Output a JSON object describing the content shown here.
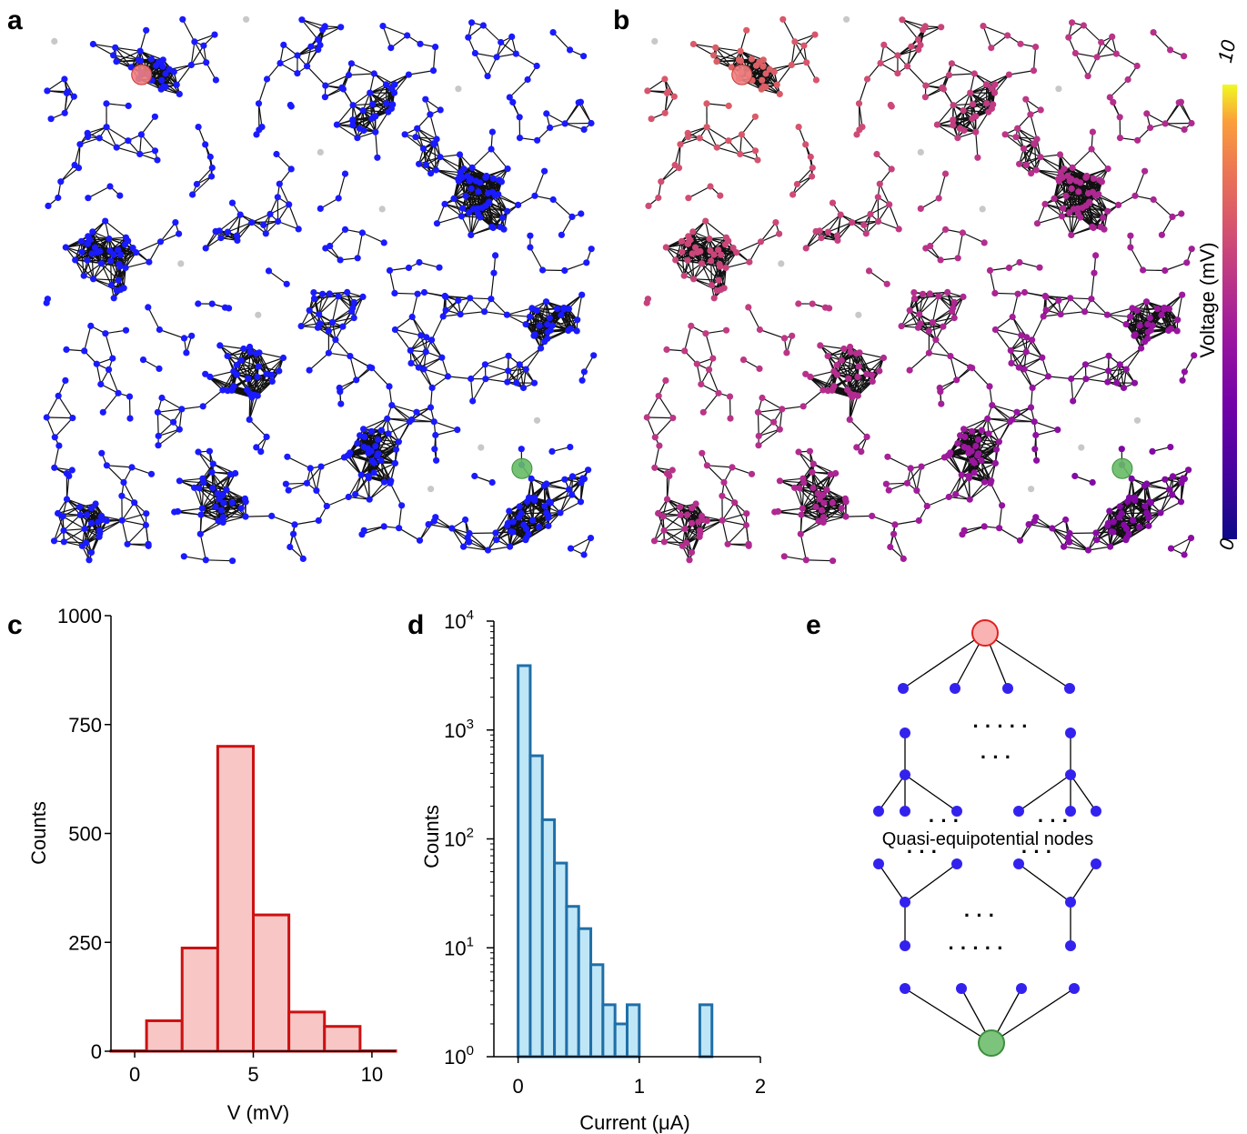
{
  "panels": {
    "a": "a",
    "b": "b",
    "c": "c",
    "d": "d",
    "e": "e"
  },
  "colors": {
    "node_a": "#1a1aff",
    "edge": "#111111",
    "isolated": "#c8c8c8",
    "source": "#f08080",
    "sink": "#66bb66",
    "hist_c_fill": "#f9c6c6",
    "hist_c_edge": "#cc1111",
    "hist_d_fill": "#bfe6f7",
    "hist_d_edge": "#1f6fa8",
    "tree_node": "#3322ee"
  },
  "colorbar": {
    "label": "Voltage (mV)",
    "max_label": "10",
    "min_label": "0",
    "colormap": "plasma"
  },
  "diagram_e": {
    "annotation": "Quasi-equipotential nodes",
    "ellipsis": "· · ·",
    "long_ellipsis": "· · · · ·"
  },
  "chart_data": [
    {
      "panel": "c",
      "type": "bar",
      "xlabel": "V (mV)",
      "ylabel": "Counts",
      "xlim": [
        -1,
        11
      ],
      "ylim": [
        0,
        1000
      ],
      "xticks": [
        "0",
        "5",
        "10"
      ],
      "yticks": [
        "0",
        "250",
        "500",
        "750",
        "1000"
      ],
      "bins": [
        {
          "x0": -1.0,
          "x1": 0.5,
          "value": 1
        },
        {
          "x0": 0.5,
          "x1": 2.0,
          "value": 70
        },
        {
          "x0": 2.0,
          "x1": 3.5,
          "value": 237
        },
        {
          "x0": 3.5,
          "x1": 5.0,
          "value": 700
        },
        {
          "x0": 5.0,
          "x1": 6.5,
          "value": 313
        },
        {
          "x0": 6.5,
          "x1": 8.0,
          "value": 90
        },
        {
          "x0": 8.0,
          "x1": 9.5,
          "value": 57
        },
        {
          "x0": 9.5,
          "x1": 11.0,
          "value": 1
        }
      ]
    },
    {
      "panel": "d",
      "type": "bar",
      "scale_y": "log",
      "xlabel": "Current (μA)",
      "ylabel": "Counts",
      "xlim": [
        -0.2,
        2.0
      ],
      "ylim": [
        1,
        10000
      ],
      "xticks": [
        "0",
        "1",
        "2"
      ],
      "yticks": [
        {
          "base": "10",
          "exp": "0"
        },
        {
          "base": "10",
          "exp": "1"
        },
        {
          "base": "10",
          "exp": "2"
        },
        {
          "base": "10",
          "exp": "3"
        },
        {
          "base": "10",
          "exp": "4"
        }
      ],
      "bins": [
        {
          "x0": 0.0,
          "x1": 0.1,
          "value": 3900
        },
        {
          "x0": 0.1,
          "x1": 0.2,
          "value": 580
        },
        {
          "x0": 0.2,
          "x1": 0.3,
          "value": 150
        },
        {
          "x0": 0.3,
          "x1": 0.4,
          "value": 60
        },
        {
          "x0": 0.4,
          "x1": 0.5,
          "value": 24
        },
        {
          "x0": 0.5,
          "x1": 0.6,
          "value": 15
        },
        {
          "x0": 0.6,
          "x1": 0.7,
          "value": 7
        },
        {
          "x0": 0.7,
          "x1": 0.8,
          "value": 3
        },
        {
          "x0": 0.8,
          "x1": 0.9,
          "value": 2
        },
        {
          "x0": 0.9,
          "x1": 1.0,
          "value": 3
        },
        {
          "x0": 1.5,
          "x1": 1.6,
          "value": 3
        }
      ]
    }
  ]
}
